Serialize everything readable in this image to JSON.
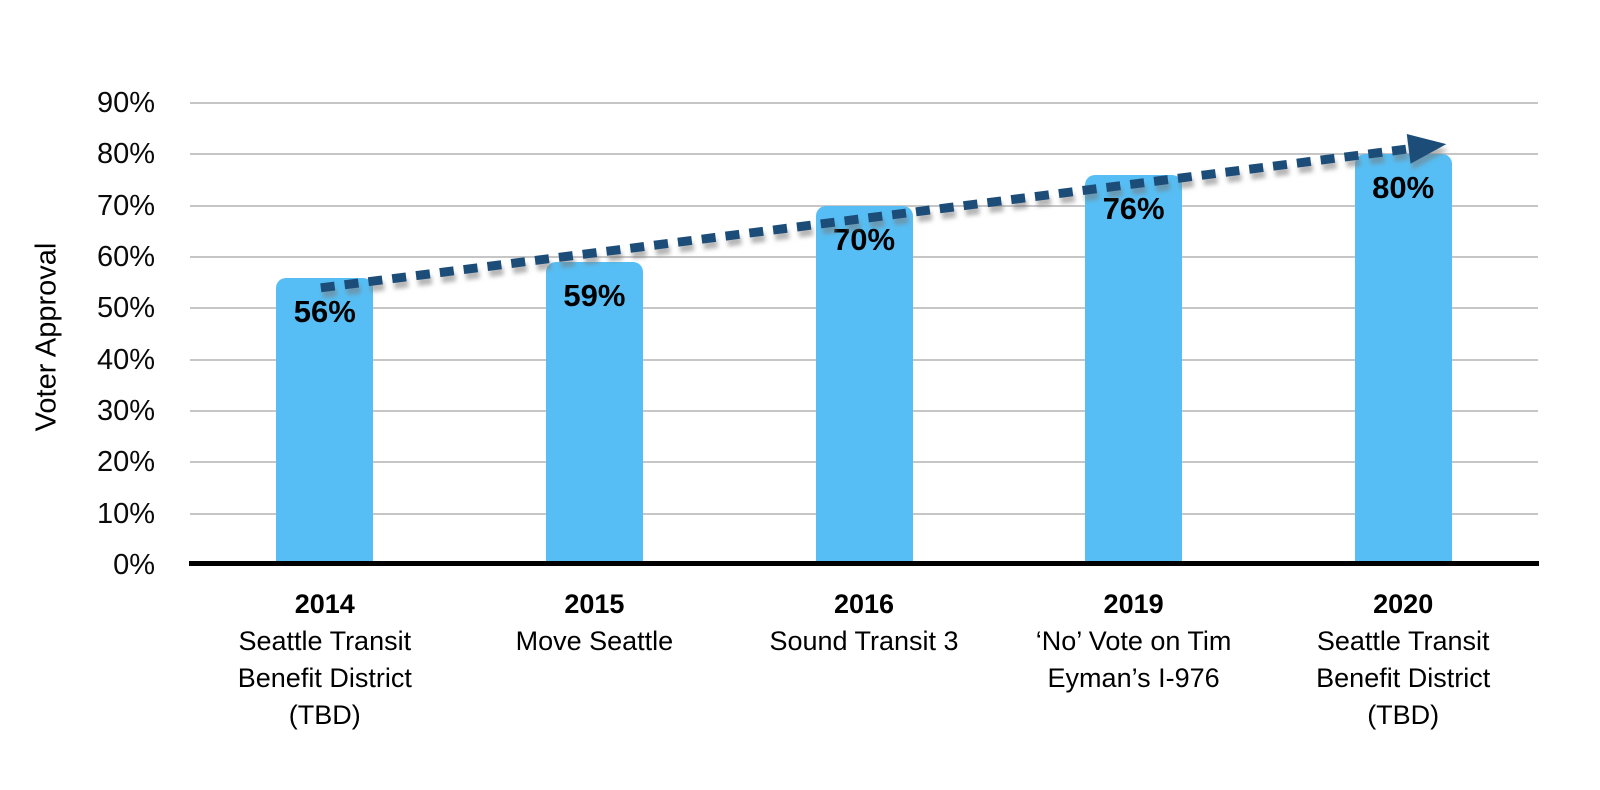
{
  "chart_data": {
    "type": "bar",
    "title": "",
    "ylabel": "Voter Approval",
    "ylim": [
      0,
      90
    ],
    "ytick_step": 10,
    "yticks": [
      "0%",
      "10%",
      "20%",
      "30%",
      "40%",
      "50%",
      "60%",
      "70%",
      "80%",
      "90%"
    ],
    "grid": "horizontal",
    "legend": false,
    "categories": [
      "2014",
      "2015",
      "2016",
      "2019",
      "2020"
    ],
    "category_sublabels": [
      [
        "Seattle Transit",
        "Benefit District",
        "(TBD)"
      ],
      [
        "Move Seattle"
      ],
      [
        "Sound Transit 3"
      ],
      [
        "‘No’ Vote on Tim",
        "Eyman’s I-976"
      ],
      [
        "Seattle Transit",
        "Benefit District",
        "(TBD)"
      ]
    ],
    "series": [
      {
        "name": "Voter Approval",
        "values": [
          56,
          59,
          70,
          76,
          80
        ]
      }
    ],
    "value_labels": [
      "56%",
      "59%",
      "70%",
      "76%",
      "80%"
    ],
    "trendline": {
      "style": "dashed-arrow",
      "start": {
        "cat": 0,
        "pct": 54
      },
      "end": {
        "cat": 4.16,
        "pct": 82
      }
    },
    "colors": {
      "bar": "#56BEF4",
      "trend": "#1D4E79",
      "gridline": "#C6C6C6",
      "axis": "#000000",
      "text": "#000000"
    }
  }
}
